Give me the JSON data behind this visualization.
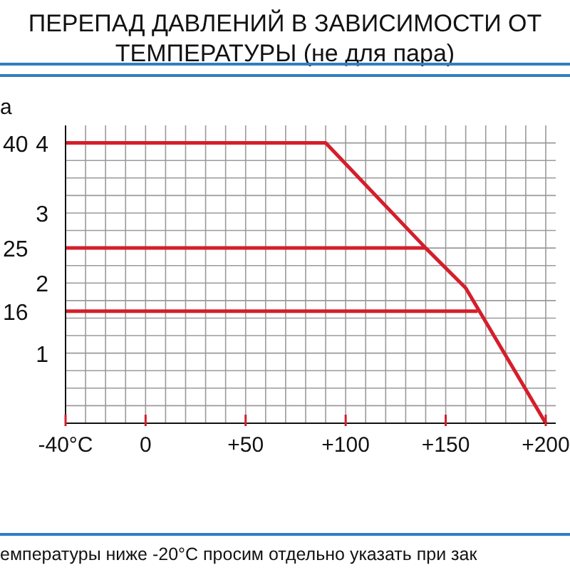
{
  "chart_data": {
    "type": "line",
    "title": "ПЕРЕПАД ДАВЛЕНИЙ В ЗАВИСИМОСТИ ОТ ТЕМПЕРАТУРЫ (не для пара)",
    "ylabel": "a",
    "annotations": [
      "емпературы ниже -20°C просим отдельно указать при зак"
    ],
    "series": [
      {
        "name": "40",
        "color": "#d41f2b",
        "x": [
          -40,
          90,
          140,
          160,
          200
        ],
        "values": [
          4,
          4,
          2.5,
          1.93,
          0
        ]
      },
      {
        "name": "25",
        "color": "#d41f2b",
        "x": [
          -40,
          140
        ],
        "values": [
          2.5,
          2.5
        ]
      },
      {
        "name": "16",
        "color": "#d41f2b",
        "x": [
          -40,
          166
        ],
        "values": [
          1.6,
          1.6
        ]
      }
    ],
    "xlim": [
      -40,
      205
    ],
    "xticks": [
      {
        "value": -40,
        "label": "-40°C"
      },
      {
        "value": -30,
        "label": null
      },
      {
        "value": -20,
        "label": null
      },
      {
        "value": -10,
        "label": null
      },
      {
        "value": 0,
        "label": "0"
      },
      {
        "value": 10,
        "label": null
      },
      {
        "value": 20,
        "label": null
      },
      {
        "value": 30,
        "label": null
      },
      {
        "value": 40,
        "label": null
      },
      {
        "value": 50,
        "label": "+50"
      },
      {
        "value": 60,
        "label": null
      },
      {
        "value": 70,
        "label": null
      },
      {
        "value": 80,
        "label": null
      },
      {
        "value": 90,
        "label": null
      },
      {
        "value": 100,
        "label": "+100"
      },
      {
        "value": 110,
        "label": null
      },
      {
        "value": 120,
        "label": null
      },
      {
        "value": 130,
        "label": null
      },
      {
        "value": 140,
        "label": null
      },
      {
        "value": 150,
        "label": "+150"
      },
      {
        "value": 160,
        "label": null
      },
      {
        "value": 170,
        "label": null
      },
      {
        "value": 180,
        "label": null
      },
      {
        "value": 190,
        "label": null
      },
      {
        "value": 200,
        "label": "+200"
      }
    ],
    "ylim": [
      0,
      4.25
    ],
    "yticks": [
      {
        "value": 0,
        "label": null
      },
      {
        "value": 0.25,
        "label": null
      },
      {
        "value": 0.5,
        "label": null
      },
      {
        "value": 0.75,
        "label": null
      },
      1,
      {
        "value": 1.25,
        "label": null
      },
      {
        "value": 1.5,
        "label": null
      },
      {
        "value": 1.75,
        "label": null
      },
      2,
      {
        "value": 2.25,
        "label": null
      },
      {
        "value": 2.5,
        "label": null
      },
      {
        "value": 2.75,
        "label": null
      },
      3,
      {
        "value": 3.25,
        "label": null
      },
      {
        "value": 3.5,
        "label": null
      },
      {
        "value": 3.75,
        "label": null
      },
      4
    ],
    "grid": true,
    "legend": false,
    "marker": "none",
    "line_style": "solid"
  }
}
